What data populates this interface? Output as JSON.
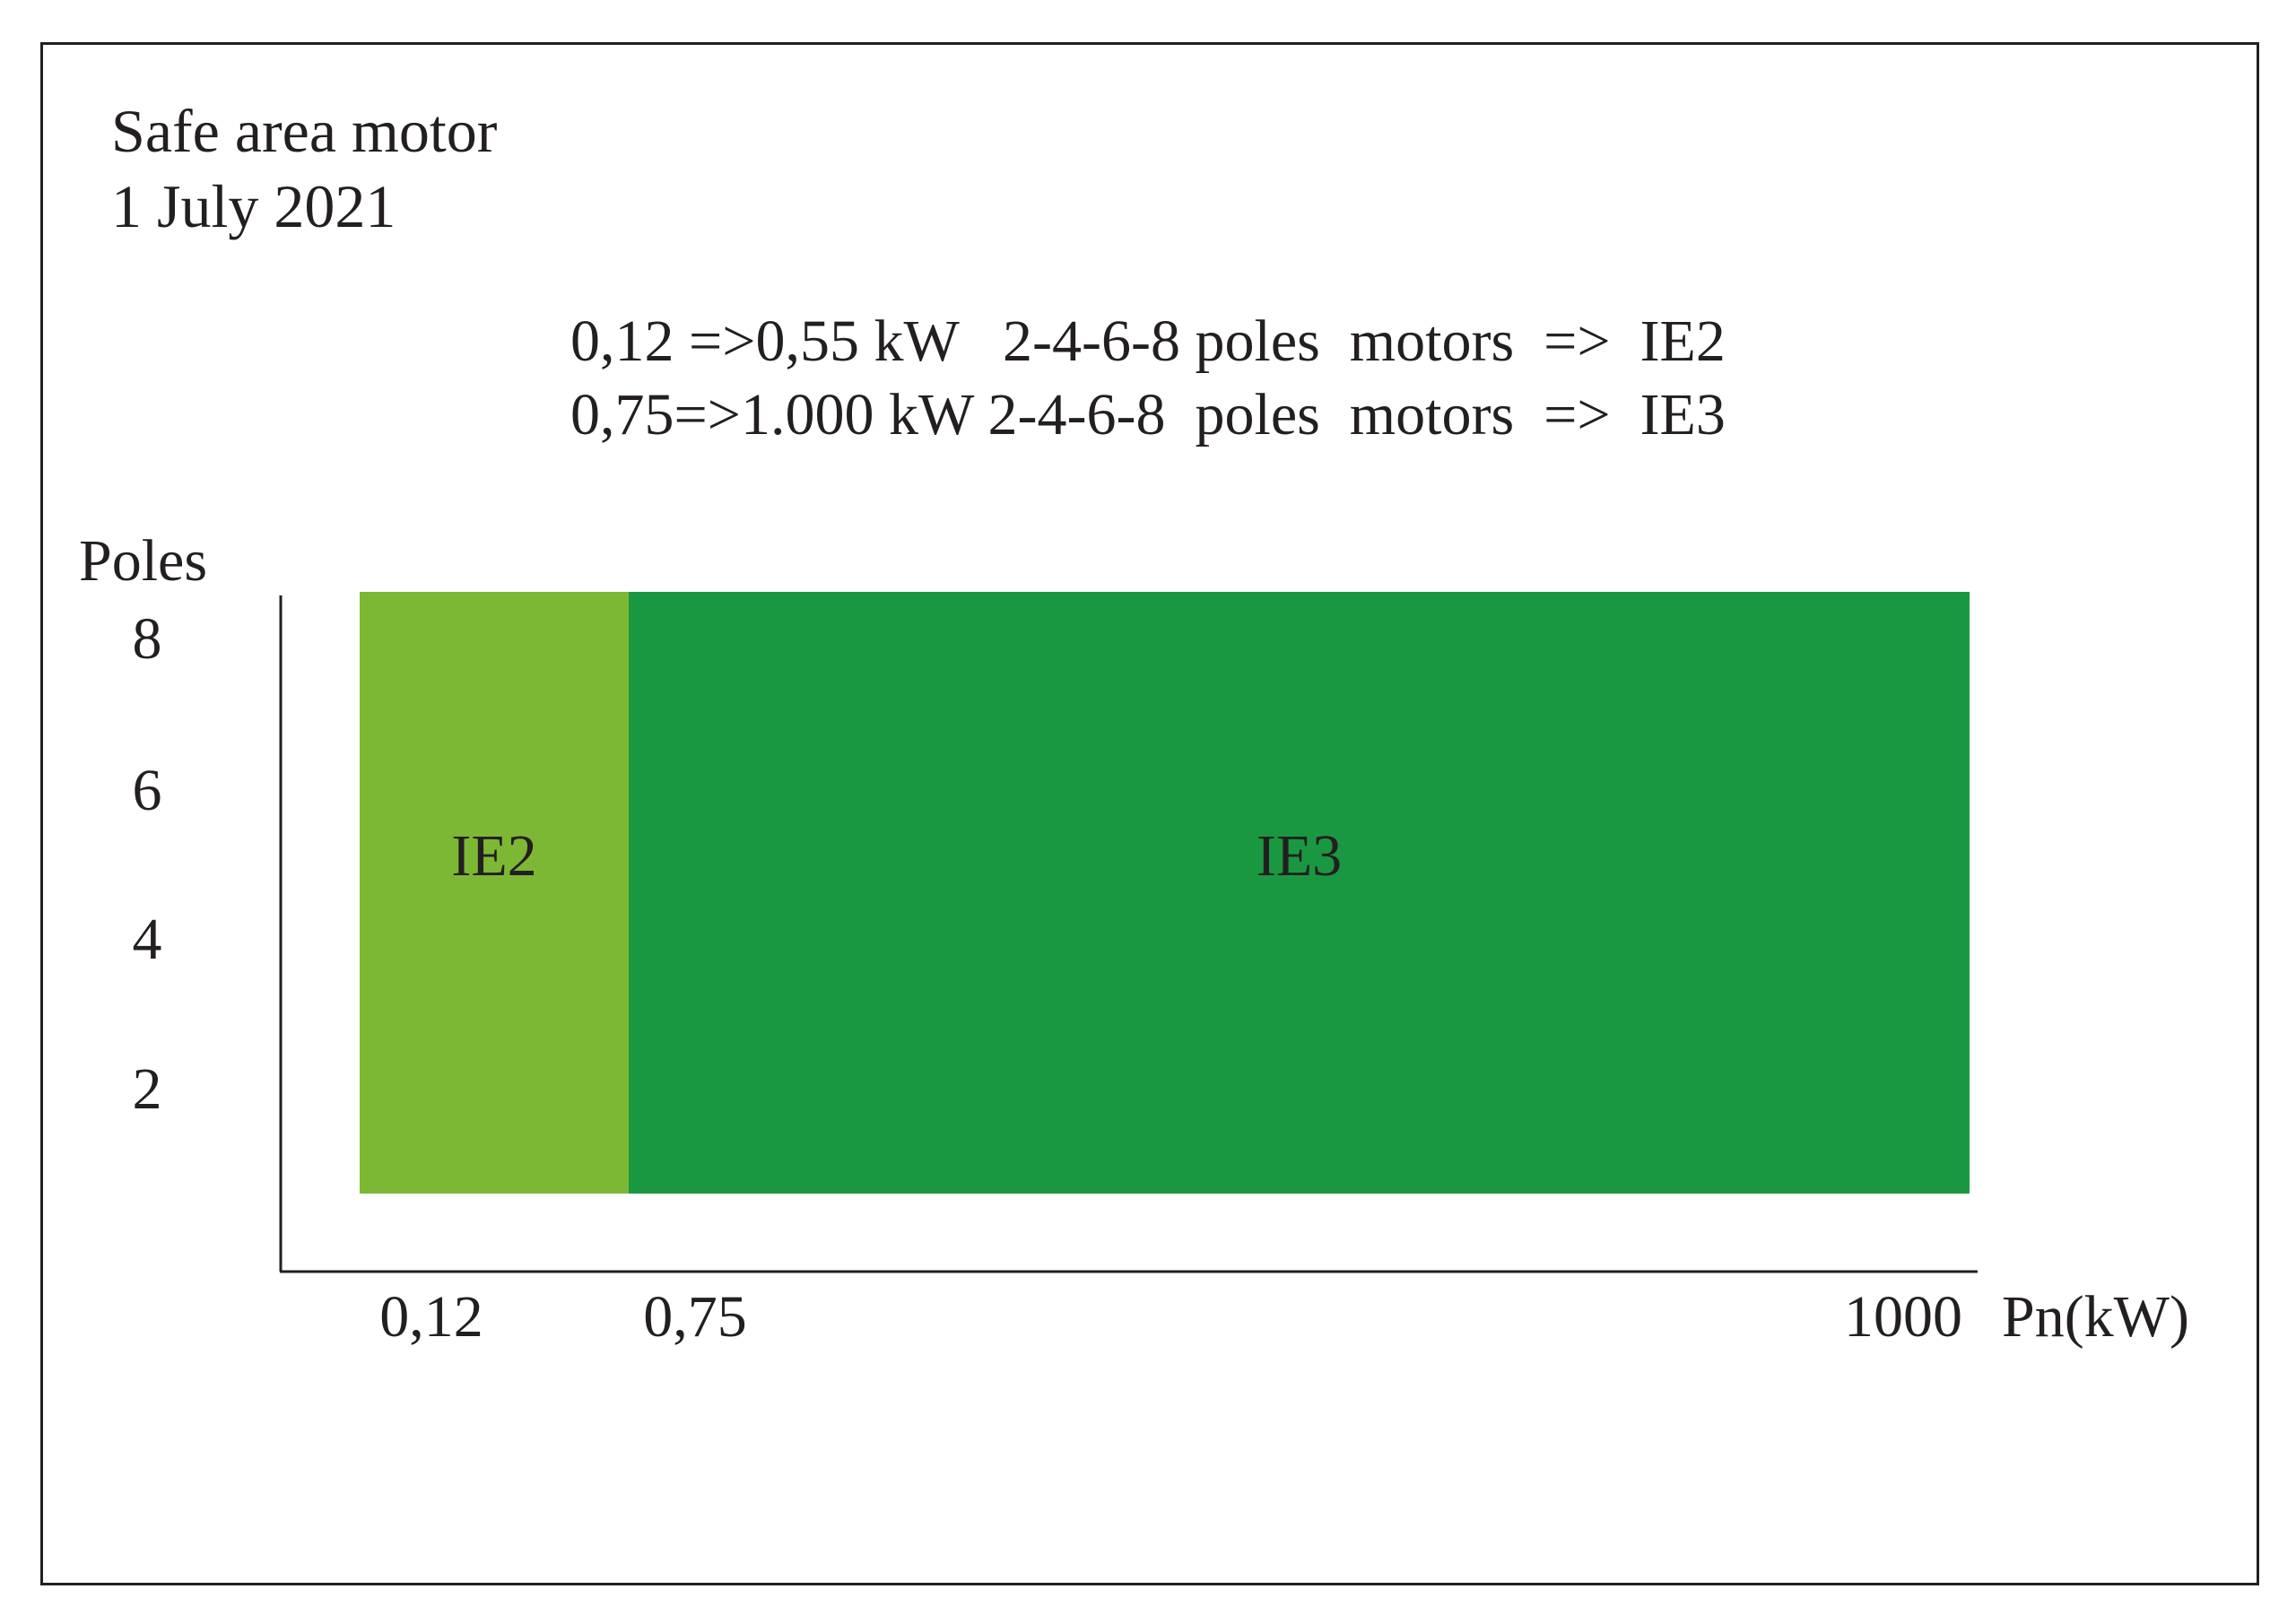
{
  "chart_data": {
    "type": "area",
    "title": "Safe area motor",
    "subtitle": "1 July 2021",
    "rules": [
      "0,12 =>0,55 kW   2-4-6-8 poles  motors  =>  IE2",
      "0,75=>1.000 kW 2-4-6-8  poles  motors  =>  IE3"
    ],
    "xlabel": "Pn(kW)",
    "ylabel": "Poles",
    "xticks": [
      "0,12",
      "0,75",
      "1000"
    ],
    "yticks": [
      "8",
      "6",
      "4",
      "2"
    ],
    "regions": [
      {
        "label": "IE2",
        "x_from": 0.12,
        "x_to": 0.75,
        "poles": [
          2,
          4,
          6,
          8
        ],
        "color": "#7db834"
      },
      {
        "label": "IE3",
        "x_from": 0.75,
        "x_to": 1000,
        "poles": [
          2,
          4,
          6,
          8
        ],
        "color": "#1a9841"
      }
    ]
  }
}
